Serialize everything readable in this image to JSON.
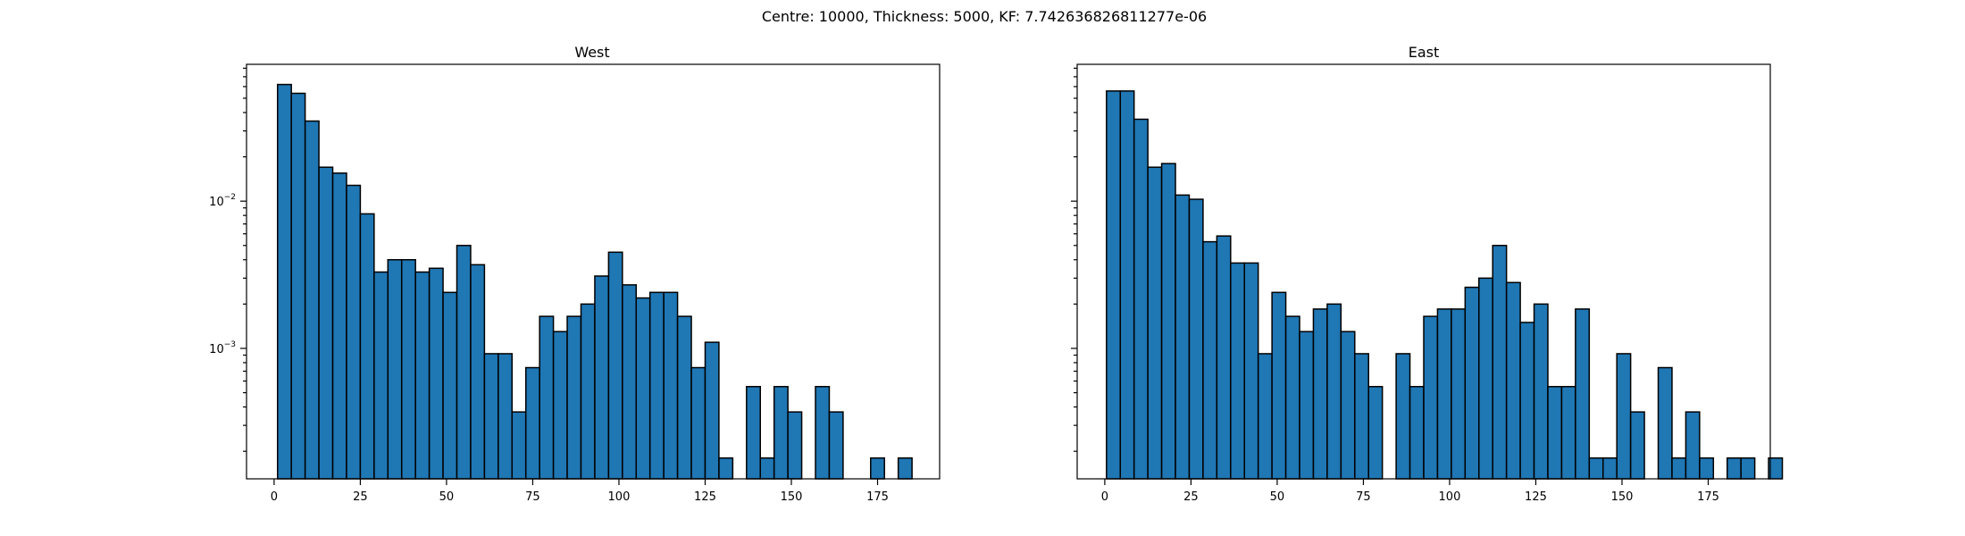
{
  "figure": {
    "suptitle": "Centre: 10000, Thickness: 5000, KF: 7.742636826811277e-06"
  },
  "colors": {
    "bar_fill": "#1f77b4",
    "bar_edge": "#000000"
  },
  "chart_data": [
    {
      "type": "bar",
      "subtype": "histogram",
      "title": "West",
      "xlabel": "",
      "ylabel": "",
      "yscale": "log",
      "bin_width": 4,
      "bin_start": 1,
      "xlim": [
        -8,
        193
      ],
      "ylim": [
        0.00013,
        0.085
      ],
      "xticks": [
        0,
        25,
        50,
        75,
        100,
        125,
        150,
        175
      ],
      "yticks": [
        {
          "value": 0.01,
          "base": "10",
          "exp": "−2"
        },
        {
          "value": 0.001,
          "base": "10",
          "exp": "−3"
        }
      ],
      "values": [
        0.062,
        0.054,
        0.035,
        0.017,
        0.0155,
        0.0128,
        0.0082,
        0.0033,
        0.004,
        0.004,
        0.0033,
        0.0035,
        0.0024,
        0.005,
        0.0037,
        0.00092,
        0.00092,
        0.00037,
        0.00074,
        0.00165,
        0.0013,
        0.00165,
        0.002,
        0.0031,
        0.0045,
        0.0027,
        0.0022,
        0.0024,
        0.0024,
        0.00165,
        0.00074,
        0.0011,
        0.00018,
        0,
        0.00055,
        0.00018,
        0.00055,
        0.00037,
        0,
        0.00055,
        0.00037,
        0,
        0,
        0.00018,
        0,
        0.00018,
        0,
        0
      ]
    },
    {
      "type": "bar",
      "subtype": "histogram",
      "title": "East",
      "xlabel": "",
      "ylabel": "",
      "yscale": "log",
      "bin_width": 4,
      "bin_start": 0.5,
      "xlim": [
        -8,
        193
      ],
      "ylim": [
        0.00013,
        0.085
      ],
      "xticks": [
        0,
        25,
        50,
        75,
        100,
        125,
        150,
        175
      ],
      "yticks": [
        {
          "value": 0.01,
          "base": "",
          "exp": ""
        },
        {
          "value": 0.001,
          "base": "",
          "exp": ""
        }
      ],
      "values": [
        0.056,
        0.056,
        0.036,
        0.017,
        0.018,
        0.011,
        0.0103,
        0.0053,
        0.0058,
        0.0038,
        0.0038,
        0.00092,
        0.0024,
        0.00165,
        0.0013,
        0.00185,
        0.002,
        0.0013,
        0.00092,
        0.00055,
        0,
        0.00092,
        0.00055,
        0.00165,
        0.00185,
        0.00185,
        0.0026,
        0.003,
        0.005,
        0.0028,
        0.0015,
        0.002,
        0.00055,
        0.00055,
        0.00185,
        0.00018,
        0.00018,
        0.00092,
        0.00037,
        0,
        0.00074,
        0.00018,
        0.00037,
        0.00018,
        0,
        0.00018,
        0.00018,
        0,
        0.00018
      ]
    }
  ]
}
